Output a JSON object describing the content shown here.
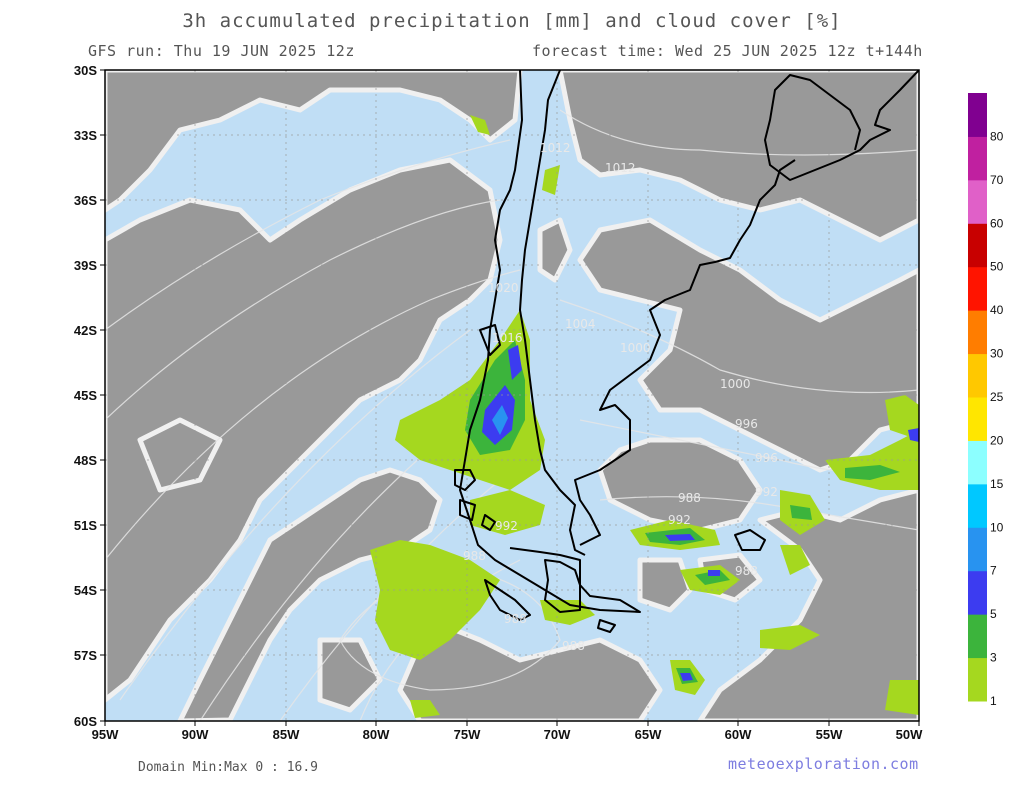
{
  "header": {
    "title": "3h accumulated precipitation [mm] and cloud cover [%]",
    "run": "GFS run: Thu 19 JUN 2025 12z",
    "forecast": "forecast time: Wed 25 JUN 2025 12z  t+144h"
  },
  "footer": {
    "minmax": "Domain Min:Max 0 : 16.9",
    "brand": "meteoexploration.com"
  },
  "axes": {
    "lat_labels": [
      "30S",
      "33S",
      "36S",
      "39S",
      "42S",
      "45S",
      "48S",
      "51S",
      "54S",
      "57S",
      "60S"
    ],
    "lon_labels": [
      "95W",
      "90W",
      "85W",
      "80W",
      "75W",
      "70W",
      "65W",
      "60W",
      "55W",
      "50W"
    ]
  },
  "isobars": [
    "1012",
    "1016",
    "1020",
    "1016",
    "1012",
    "1008",
    "1004",
    "1000",
    "996",
    "992",
    "988",
    "988",
    "992",
    "988",
    "984",
    "984",
    "1016"
  ],
  "colorbar": {
    "levels": [
      "1",
      "3",
      "5",
      "7",
      "10",
      "15",
      "20",
      "25",
      "30",
      "40",
      "50",
      "60",
      "70",
      "80"
    ],
    "colors": [
      "#a5d81f",
      "#3cb43c",
      "#3c3cf0",
      "#2893f0",
      "#00c8ff",
      "#8cffff",
      "#ffe600",
      "#ffc800",
      "#ff7d00",
      "#ff1400",
      "#c80000",
      "#e060c8",
      "#c020a0",
      "#800090"
    ]
  },
  "colors": {
    "cloud": "#999999",
    "clear": "#c0def5",
    "cloud_edge": "#f0f0f0",
    "precip_light": "#a5d81f",
    "precip_med": "#3cb43c",
    "precip_heavy": "#3c3cf0",
    "coast": "#000000"
  }
}
